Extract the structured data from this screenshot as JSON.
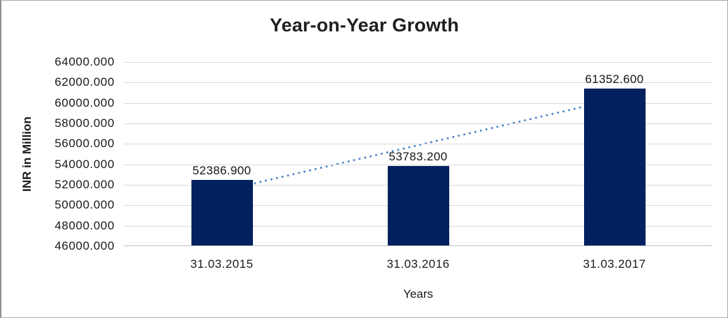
{
  "chart_data": {
    "type": "bar",
    "title": "Year-on-Year Growth",
    "xlabel": "Years",
    "ylabel": "INR in Million",
    "categories": [
      "31.03.2015",
      "31.03.2016",
      "31.03.2017"
    ],
    "values": [
      52386.9,
      53783.2,
      61352.6
    ],
    "data_labels": [
      "52386.900",
      "53783.200",
      "61352.600"
    ],
    "ylim": [
      46000,
      64000
    ],
    "ytick_step": 2000,
    "ytick_labels": [
      "64000.000",
      "62000.000",
      "60000.000",
      "58000.000",
      "56000.000",
      "54000.000",
      "52000.000",
      "50000.000",
      "48000.000",
      "46000.000"
    ],
    "grid": "horizontal",
    "legend": "none",
    "trendline": {
      "type": "linear",
      "style": "dotted"
    },
    "colors": {
      "bar": "#02215e",
      "trendline": "#4e86c8",
      "gridline": "#d9d9d9",
      "axis_line": "#bfbfbf",
      "text": "#191919"
    }
  }
}
